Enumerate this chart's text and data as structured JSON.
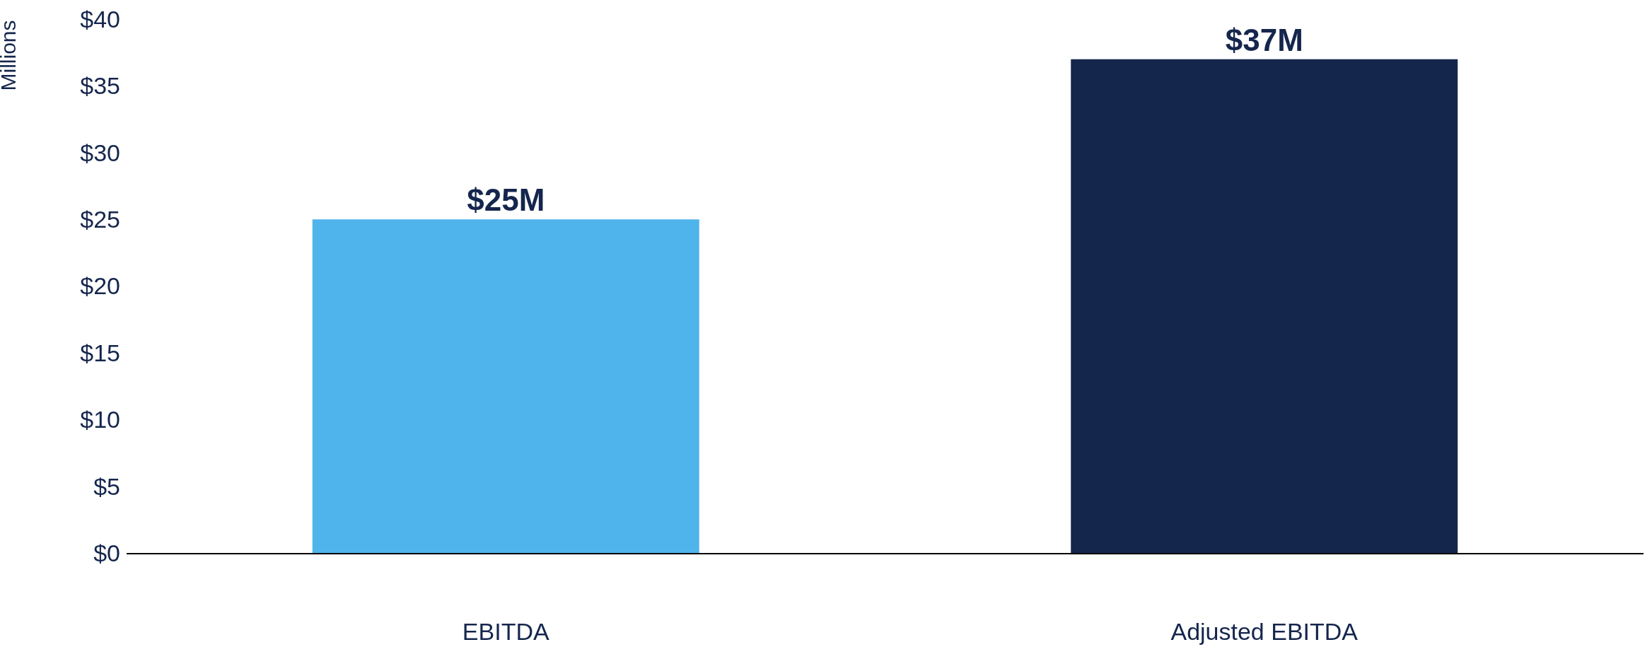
{
  "chart_data": {
    "type": "bar",
    "ylabel": "Millions",
    "categories": [
      "EBITDA",
      "Adjusted EBITDA"
    ],
    "values": [
      25,
      37
    ],
    "colors": [
      "#4fb4eb",
      "#15264d"
    ],
    "value_labels": [
      "$25M",
      "$37M"
    ],
    "ylim": [
      0,
      40
    ],
    "yticks": [
      {
        "value": 0,
        "label": "$0"
      },
      {
        "value": 5,
        "label": "$5"
      },
      {
        "value": 10,
        "label": "$10"
      },
      {
        "value": 15,
        "label": "$15"
      },
      {
        "value": 20,
        "label": "$20"
      },
      {
        "value": 25,
        "label": "$25"
      },
      {
        "value": 30,
        "label": "$30"
      },
      {
        "value": 35,
        "label": "$35"
      },
      {
        "value": 40,
        "label": "$40"
      }
    ],
    "grid": false
  }
}
